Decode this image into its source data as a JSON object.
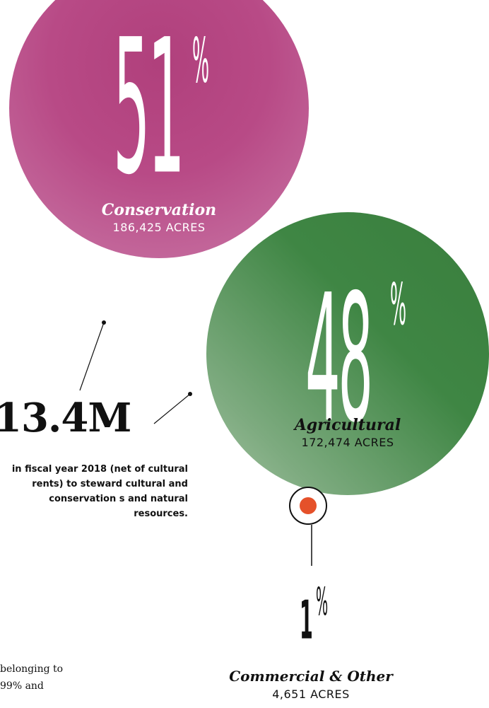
{
  "conservation": {
    "percent": "51",
    "percent_sign": "%",
    "label": "Conservation",
    "acres": "186,425 ACRES"
  },
  "agricultural": {
    "percent": "48",
    "percent_sign": "%",
    "label": "Agricultural",
    "acres": "172,474 ACRES"
  },
  "commercial": {
    "percent": "1",
    "percent_sign": "%",
    "label": "Commercial & Other",
    "acres": "4,651 ACRES"
  },
  "stat": {
    "amount": "13.4M",
    "description": "in fiscal year 2018 (net of cultural rents) to steward cultural and conservation s and natural resources."
  },
  "footer_text": {
    "line1": "belonging to",
    "line2": "99% and"
  },
  "colors": {
    "conservation": "#b84a86",
    "agricultural": "#3f8644",
    "commercial_dot": "#e5512a"
  }
}
